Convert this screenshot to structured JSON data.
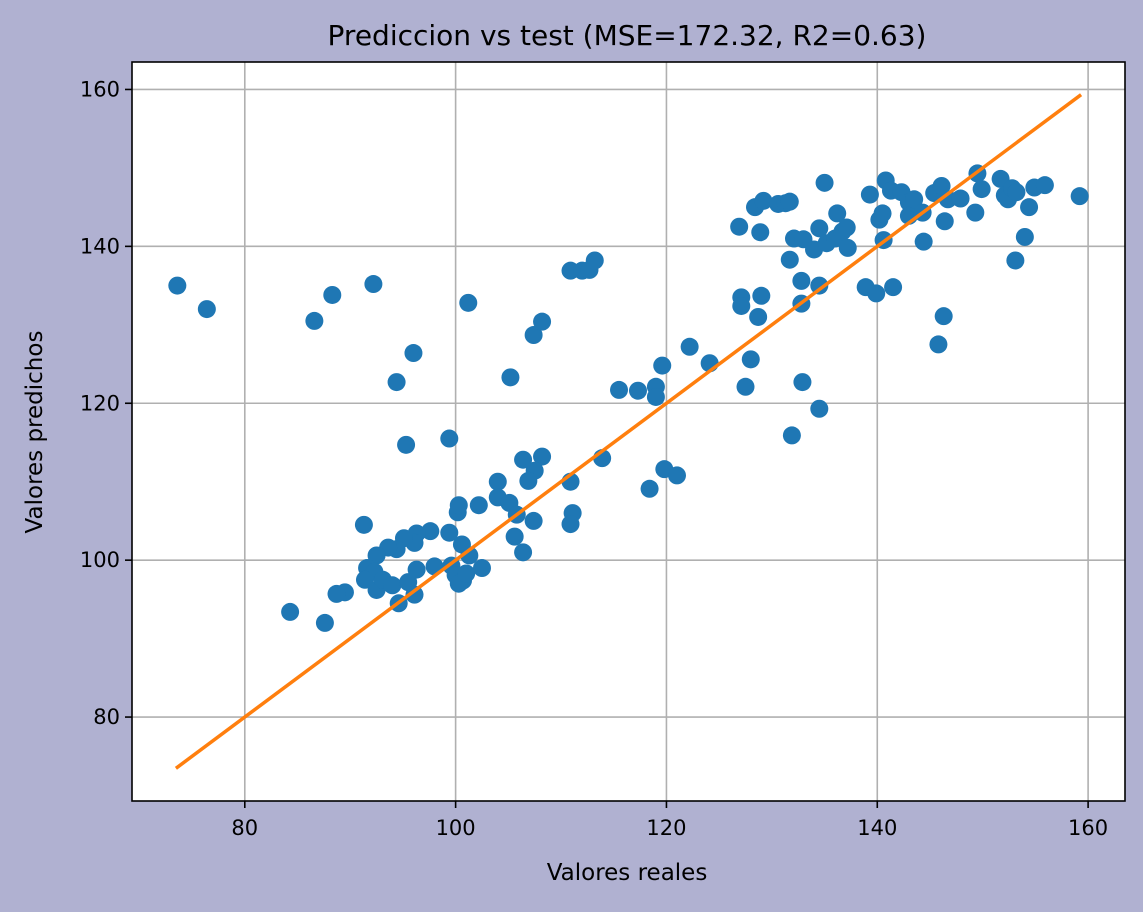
{
  "chart_data": {
    "type": "scatter",
    "title": "Prediccion vs test (MSE=172.32,  R2=0.63)",
    "xlabel": "Valores reales",
    "ylabel": "Valores predichos",
    "xlim": [
      69.3,
      163.5
    ],
    "ylim": [
      69.3,
      163.5
    ],
    "xticks": [
      80,
      100,
      120,
      140,
      160
    ],
    "yticks": [
      80,
      100,
      120,
      140,
      160
    ],
    "grid": true,
    "colors": {
      "figure_background": "#b0b1d1",
      "axes_background": "#ffffff",
      "points": "#1f77b4",
      "line": "#ff7f0e",
      "grid": "#b0b0b0"
    },
    "series": [
      {
        "type": "scatter",
        "points": [
          [
            73.6,
            135.0
          ],
          [
            76.4,
            132.0
          ],
          [
            86.6,
            130.5
          ],
          [
            88.3,
            133.8
          ],
          [
            92.2,
            135.2
          ],
          [
            94.4,
            122.7
          ],
          [
            95.3,
            114.7
          ],
          [
            96.0,
            126.4
          ],
          [
            99.4,
            115.5
          ],
          [
            101.2,
            132.8
          ],
          [
            105.2,
            123.3
          ],
          [
            107.4,
            128.7
          ],
          [
            108.2,
            130.4
          ],
          [
            110.9,
            136.9
          ],
          [
            112.0,
            136.9
          ],
          [
            112.7,
            137.0
          ],
          [
            113.2,
            138.2
          ],
          [
            113.9,
            113.0
          ],
          [
            108.2,
            113.2
          ],
          [
            107.5,
            111.4
          ],
          [
            106.9,
            110.1
          ],
          [
            106.4,
            112.8
          ],
          [
            104.0,
            110.0
          ],
          [
            104.0,
            108.0
          ],
          [
            105.1,
            107.3
          ],
          [
            105.8,
            105.8
          ],
          [
            107.4,
            105.0
          ],
          [
            105.6,
            103.0
          ],
          [
            106.4,
            101.0
          ],
          [
            110.9,
            110.0
          ],
          [
            111.1,
            106.0
          ],
          [
            110.9,
            104.6
          ],
          [
            102.2,
            107.0
          ],
          [
            102.5,
            99.0
          ],
          [
            101.3,
            100.6
          ],
          [
            100.6,
            102.0
          ],
          [
            100.2,
            106.1
          ],
          [
            100.3,
            107.0
          ],
          [
            99.4,
            103.5
          ],
          [
            97.6,
            103.7
          ],
          [
            96.3,
            103.4
          ],
          [
            96.1,
            102.2
          ],
          [
            95.1,
            102.8
          ],
          [
            94.4,
            101.4
          ],
          [
            93.6,
            101.6
          ],
          [
            92.5,
            100.6
          ],
          [
            91.3,
            104.5
          ],
          [
            91.6,
            99.0
          ],
          [
            92.3,
            98.5
          ],
          [
            92.5,
            96.2
          ],
          [
            91.4,
            97.5
          ],
          [
            93.1,
            97.5
          ],
          [
            94.0,
            96.8
          ],
          [
            94.6,
            94.5
          ],
          [
            95.5,
            97.2
          ],
          [
            96.1,
            95.6
          ],
          [
            96.3,
            98.8
          ],
          [
            98.0,
            99.2
          ],
          [
            99.6,
            99.3
          ],
          [
            100.0,
            98.1
          ],
          [
            100.7,
            97.4
          ],
          [
            100.3,
            97.0
          ],
          [
            101.0,
            98.3
          ],
          [
            89.5,
            95.9
          ],
          [
            88.7,
            95.7
          ],
          [
            84.3,
            93.4
          ],
          [
            87.6,
            92.0
          ],
          [
            115.5,
            121.7
          ],
          [
            117.3,
            121.6
          ],
          [
            119.0,
            122.1
          ],
          [
            119.0,
            120.8
          ],
          [
            119.6,
            124.8
          ],
          [
            119.8,
            111.6
          ],
          [
            121.0,
            110.8
          ],
          [
            118.4,
            109.1
          ],
          [
            122.2,
            127.2
          ],
          [
            124.1,
            125.1
          ],
          [
            126.9,
            142.5
          ],
          [
            127.1,
            133.5
          ],
          [
            127.1,
            132.4
          ],
          [
            127.5,
            122.1
          ],
          [
            128.0,
            125.6
          ],
          [
            128.4,
            145.0
          ],
          [
            128.7,
            131.0
          ],
          [
            128.9,
            141.8
          ],
          [
            129.0,
            133.7
          ],
          [
            129.2,
            145.8
          ],
          [
            130.6,
            145.4
          ],
          [
            131.3,
            145.5
          ],
          [
            131.7,
            145.7
          ],
          [
            131.7,
            138.3
          ],
          [
            132.1,
            141.0
          ],
          [
            131.9,
            115.9
          ],
          [
            132.9,
            122.7
          ],
          [
            132.8,
            132.7
          ],
          [
            132.8,
            135.6
          ],
          [
            133.0,
            140.9
          ],
          [
            134.0,
            139.6
          ],
          [
            134.5,
            142.3
          ],
          [
            134.5,
            135.0
          ],
          [
            134.5,
            119.3
          ],
          [
            135.0,
            148.1
          ],
          [
            135.2,
            140.4
          ],
          [
            136.0,
            141.0
          ],
          [
            136.2,
            144.2
          ],
          [
            136.7,
            141.9
          ],
          [
            137.1,
            142.4
          ],
          [
            137.2,
            139.8
          ],
          [
            138.9,
            134.8
          ],
          [
            139.3,
            146.6
          ],
          [
            139.9,
            134.0
          ],
          [
            140.2,
            143.4
          ],
          [
            140.5,
            144.2
          ],
          [
            140.6,
            140.8
          ],
          [
            140.8,
            148.4
          ],
          [
            141.3,
            147.1
          ],
          [
            141.5,
            134.8
          ],
          [
            142.3,
            146.9
          ],
          [
            143.0,
            145.6
          ],
          [
            143.0,
            143.9
          ],
          [
            143.5,
            146.0
          ],
          [
            144.3,
            144.3
          ],
          [
            144.4,
            140.6
          ],
          [
            145.4,
            146.8
          ],
          [
            145.8,
            127.5
          ],
          [
            146.1,
            147.7
          ],
          [
            146.3,
            131.1
          ],
          [
            146.4,
            143.2
          ],
          [
            146.7,
            146.0
          ],
          [
            147.9,
            146.1
          ],
          [
            149.3,
            144.3
          ],
          [
            149.5,
            149.3
          ],
          [
            149.9,
            147.3
          ],
          [
            151.7,
            148.6
          ],
          [
            152.1,
            146.5
          ],
          [
            152.4,
            146.0
          ],
          [
            152.8,
            147.4
          ],
          [
            153.2,
            146.9
          ],
          [
            153.1,
            138.2
          ],
          [
            154.0,
            141.2
          ],
          [
            154.4,
            145.0
          ],
          [
            154.9,
            147.5
          ],
          [
            155.9,
            147.8
          ],
          [
            159.2,
            146.4
          ]
        ]
      },
      {
        "type": "line",
        "points": [
          [
            73.6,
            73.6
          ],
          [
            159.2,
            159.2
          ]
        ]
      }
    ]
  }
}
